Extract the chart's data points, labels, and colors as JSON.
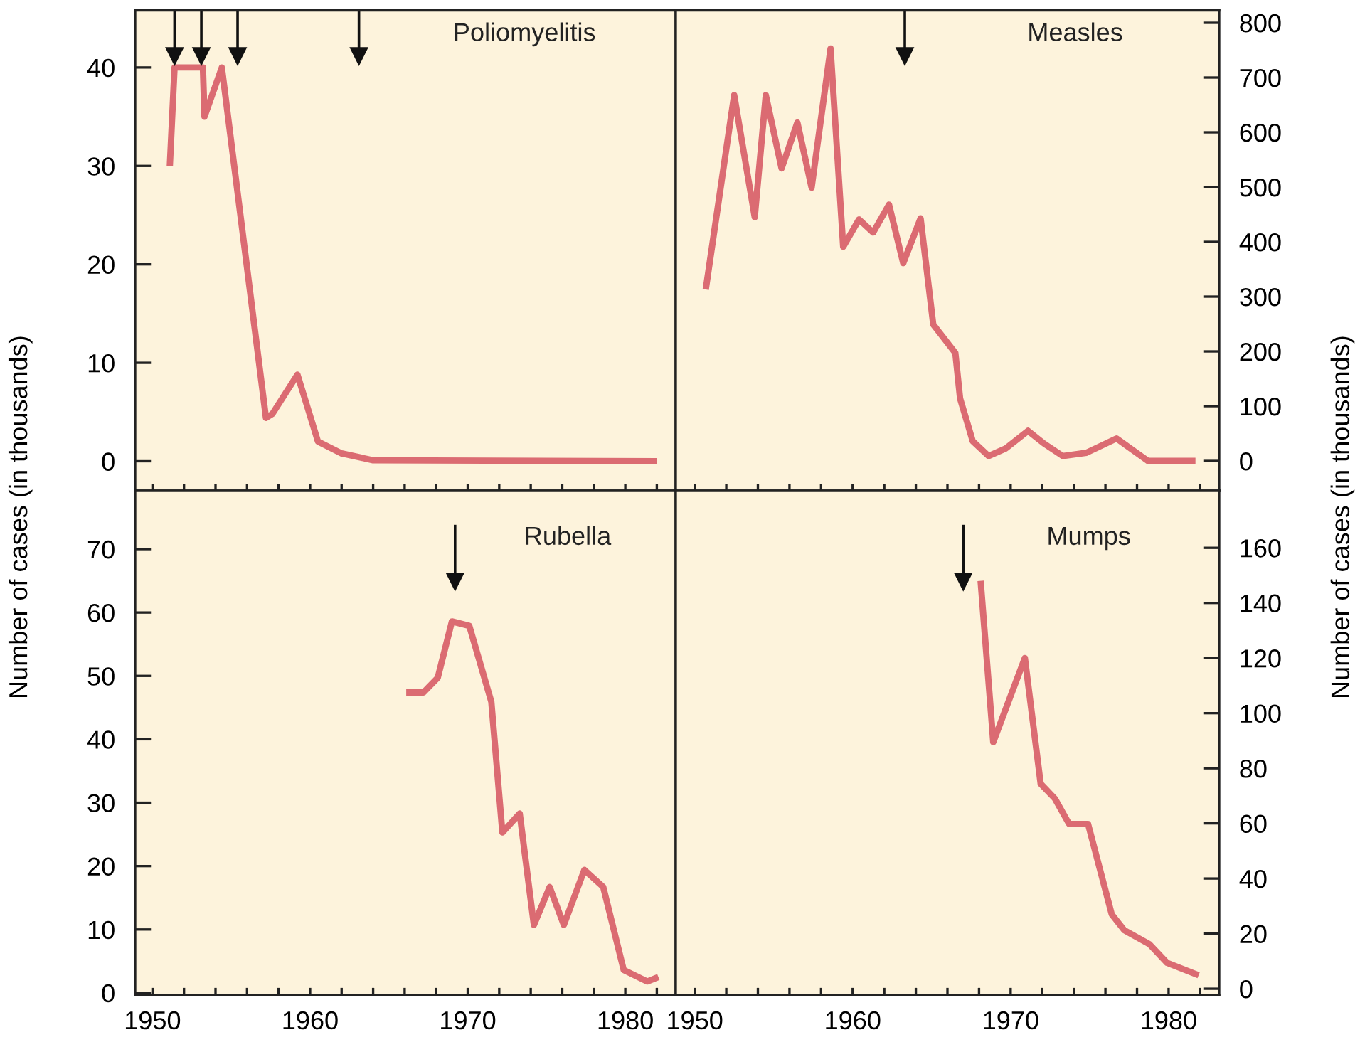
{
  "chart_data": [
    {
      "type": "line",
      "title": "Poliomyelitis",
      "ylabel": "Number of cases (in thousands)",
      "tick_labels": "y",
      "grid": false,
      "legend": false,
      "marker": "none",
      "line_style": "solid",
      "xlim": [
        1948.9,
        1983.2
      ],
      "xticks": [
        {
          "value": 1950,
          "label": null
        },
        {
          "value": 1952,
          "label": null
        },
        {
          "value": 1954,
          "label": null
        },
        {
          "value": 1956,
          "label": null
        },
        {
          "value": 1958,
          "label": null
        },
        {
          "value": 1960,
          "label": null
        },
        {
          "value": 1962,
          "label": null
        },
        {
          "value": 1964,
          "label": null
        },
        {
          "value": 1966,
          "label": null
        },
        {
          "value": 1968,
          "label": null
        },
        {
          "value": 1970,
          "label": null
        },
        {
          "value": 1972,
          "label": null
        },
        {
          "value": 1974,
          "label": null
        },
        {
          "value": 1976,
          "label": null
        },
        {
          "value": 1978,
          "label": null
        },
        {
          "value": 1980,
          "label": null
        },
        {
          "value": 1982,
          "label": null
        }
      ],
      "ylim": [
        -3,
        45.8
      ],
      "yticks": [
        0,
        10,
        20,
        30,
        40
      ],
      "ref_lines": [
        {
          "axis": "x",
          "value": 1951.4
        },
        {
          "axis": "x",
          "value": 1953.1
        },
        {
          "axis": "x",
          "value": 1955.4
        },
        {
          "axis": "x",
          "value": 1963.1
        }
      ],
      "series": [
        {
          "color": "#db6b72",
          "x": [
            1951.1,
            1951.4,
            1953.2,
            1953.3,
            1954.4,
            1957.2,
            1957.6,
            1959.2,
            1960.5,
            1962.0,
            1964.0,
            1982.0
          ],
          "values": [
            30,
            40,
            40,
            35,
            40,
            4.4,
            4.8,
            8.8,
            2.0,
            0.8,
            0.1,
            0
          ]
        }
      ]
    },
    {
      "type": "line",
      "title": "Measles",
      "ylabel": "Number of cases (in thousands)",
      "tick_labels": "y",
      "grid": false,
      "legend": false,
      "marker": "none",
      "line_style": "solid",
      "xlim": [
        1948.8,
        1983.2
      ],
      "xticks": [
        {
          "value": 1950,
          "label": null
        },
        {
          "value": 1952,
          "label": null
        },
        {
          "value": 1954,
          "label": null
        },
        {
          "value": 1956,
          "label": null
        },
        {
          "value": 1958,
          "label": null
        },
        {
          "value": 1960,
          "label": null
        },
        {
          "value": 1962,
          "label": null
        },
        {
          "value": 1964,
          "label": null
        },
        {
          "value": 1966,
          "label": null
        },
        {
          "value": 1968,
          "label": null
        },
        {
          "value": 1970,
          "label": null
        },
        {
          "value": 1972,
          "label": null
        },
        {
          "value": 1974,
          "label": null
        },
        {
          "value": 1976,
          "label": null
        },
        {
          "value": 1978,
          "label": null
        },
        {
          "value": 1980,
          "label": null
        },
        {
          "value": 1982,
          "label": null
        }
      ],
      "ylim": [
        -54.5,
        822.6
      ],
      "yticks": [
        0,
        100,
        200,
        300,
        400,
        500,
        600,
        700,
        800
      ],
      "ref_lines": [
        {
          "axis": "x",
          "value": 1963.3
        }
      ],
      "series": [
        {
          "color": "#db6b72",
          "x": [
            1950.7,
            1952.5,
            1953.8,
            1954.5,
            1955.5,
            1956.5,
            1957.4,
            1958.6,
            1959.4,
            1960.4,
            1961.3,
            1962.3,
            1963.2,
            1964.3,
            1965.1,
            1966.5,
            1966.8,
            1967.6,
            1968.6,
            1969.7,
            1971.1,
            1972.1,
            1973.3,
            1974.8,
            1976.7,
            1978.7,
            1981.7
          ],
          "values": [
            313,
            668,
            445,
            668,
            534,
            618,
            499,
            753,
            391,
            441,
            417,
            468,
            361,
            443,
            249,
            197,
            114,
            36,
            9,
            23,
            55,
            32,
            9,
            15,
            41,
            0,
            0
          ]
        }
      ]
    },
    {
      "type": "line",
      "title": "Rubella",
      "grid": false,
      "legend": false,
      "marker": "none",
      "line_style": "solid",
      "xlim": [
        1948.9,
        1983.2
      ],
      "xticks": [
        1950,
        {
          "value": 1952,
          "label": null
        },
        {
          "value": 1954,
          "label": null
        },
        {
          "value": 1956,
          "label": null
        },
        {
          "value": 1958,
          "label": null
        },
        1960,
        {
          "value": 1962,
          "label": null
        },
        {
          "value": 1964,
          "label": null
        },
        {
          "value": 1966,
          "label": null
        },
        {
          "value": 1968,
          "label": null
        },
        1970,
        {
          "value": 1972,
          "label": null
        },
        {
          "value": 1974,
          "label": null
        },
        {
          "value": 1976,
          "label": null
        },
        {
          "value": 1978,
          "label": null
        },
        1980,
        {
          "value": 1982,
          "label": null
        }
      ],
      "ylim": [
        -0.3,
        79.2
      ],
      "yticks": [
        0,
        10,
        20,
        30,
        40,
        50,
        60,
        70
      ],
      "ref_lines": [
        {
          "axis": "x",
          "value": 1969.2
        }
      ],
      "series": [
        {
          "color": "#db6b72",
          "x": [
            1966.1,
            1967.2,
            1968.1,
            1969.0,
            1970.1,
            1970.8,
            1971.5,
            1972.2,
            1973.3,
            1974.2,
            1975.2,
            1976.1,
            1977.4,
            1978.6,
            1979.9,
            1981.4,
            1982.1
          ],
          "values": [
            47.4,
            47.4,
            49.7,
            58.6,
            57.9,
            51.9,
            45.9,
            25.3,
            28.3,
            10.7,
            16.7,
            10.7,
            19.4,
            16.7,
            3.6,
            1.8,
            2.5
          ]
        }
      ]
    },
    {
      "type": "line",
      "title": "Mumps",
      "grid": false,
      "legend": false,
      "marker": "none",
      "line_style": "solid",
      "xlim": [
        1948.8,
        1983.2
      ],
      "xticks": [
        1950,
        {
          "value": 1952,
          "label": null
        },
        {
          "value": 1954,
          "label": null
        },
        {
          "value": 1956,
          "label": null
        },
        {
          "value": 1958,
          "label": null
        },
        1960,
        {
          "value": 1962,
          "label": null
        },
        {
          "value": 1964,
          "label": null
        },
        {
          "value": 1966,
          "label": null
        },
        {
          "value": 1968,
          "label": null
        },
        1970,
        {
          "value": 1972,
          "label": null
        },
        {
          "value": 1974,
          "label": null
        },
        {
          "value": 1976,
          "label": null
        },
        {
          "value": 1978,
          "label": null
        },
        1980,
        {
          "value": 1982,
          "label": null
        }
      ],
      "ylim": [
        -2.2,
        180.7
      ],
      "yticks": [
        0,
        20,
        40,
        60,
        80,
        100,
        120,
        140,
        160
      ],
      "ref_lines": [
        {
          "axis": "x",
          "value": 1967.0
        }
      ],
      "series": [
        {
          "color": "#db6b72",
          "x": [
            1968.1,
            1968.9,
            1970.9,
            1971.9,
            1972.8,
            1973.7,
            1974.9,
            1976.4,
            1977.2,
            1978.8,
            1979.9,
            1981.9
          ],
          "values": [
            148,
            89.5,
            120,
            74.4,
            69,
            59.8,
            59.8,
            27,
            21.2,
            16.1,
            9.4,
            4.9
          ]
        }
      ]
    }
  ]
}
